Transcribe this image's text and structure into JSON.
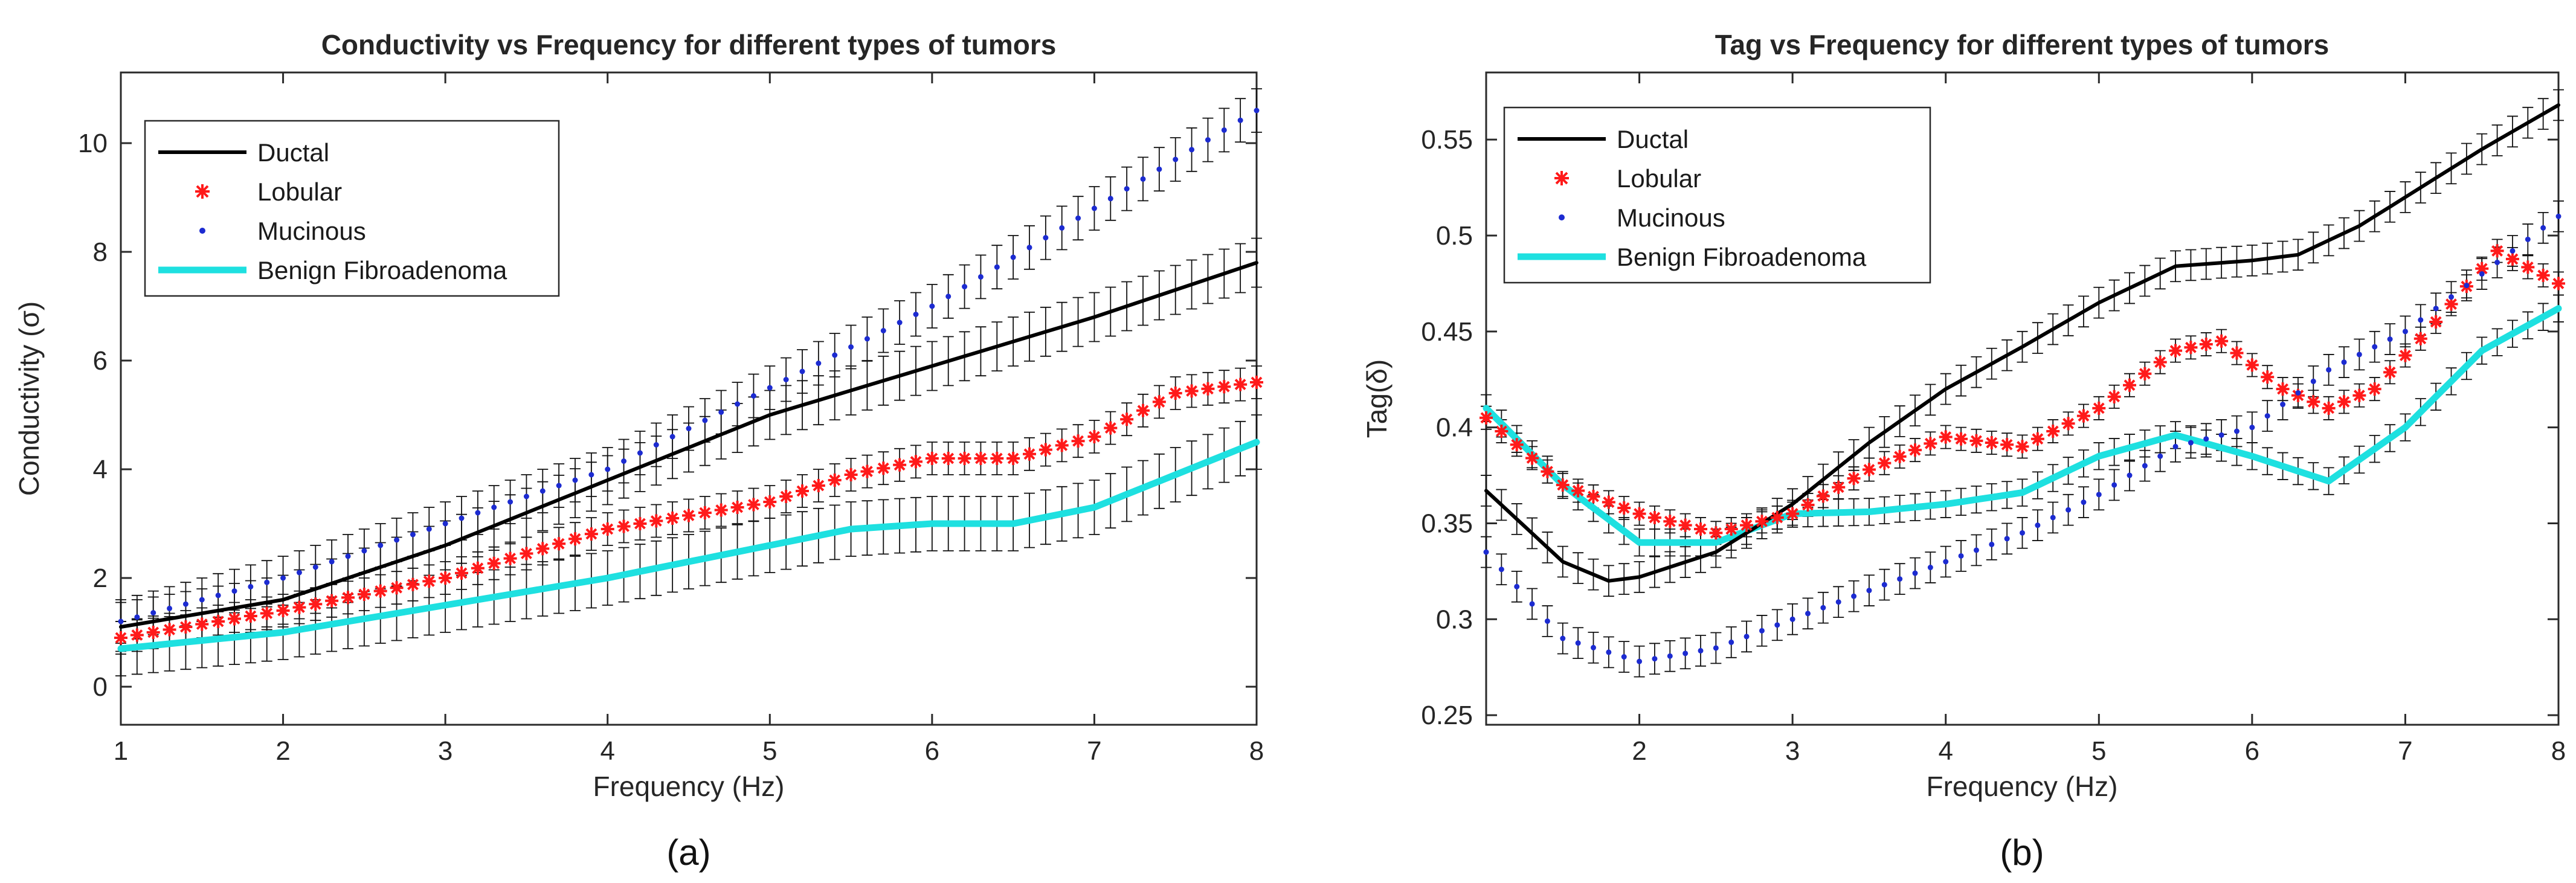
{
  "figure": {
    "panel_a_caption": "(a)",
    "panel_b_caption": "(b)"
  },
  "chart_data": [
    {
      "type": "line",
      "title": "Conductivity vs Frequency for different types of tumors",
      "xlabel": "Frequency (Hz)",
      "ylabel": "Conductivity (σ)",
      "xlim": [
        1,
        8
      ],
      "ylim": [
        -0.7,
        11.3
      ],
      "xticks": [
        1,
        2,
        3,
        4,
        5,
        6,
        7,
        8
      ],
      "yticks": [
        0,
        2,
        4,
        6,
        8,
        10
      ],
      "grid": false,
      "legend": "top-left",
      "series": [
        {
          "name": "Ductal",
          "style": "line",
          "color": "#000000",
          "error": 0.45,
          "x": [
            1,
            2,
            3,
            4,
            5,
            6,
            7,
            8
          ],
          "values": [
            1.1,
            1.6,
            2.6,
            3.8,
            5.0,
            5.9,
            6.8,
            7.8
          ]
        },
        {
          "name": "Lobular",
          "style": "asterisk",
          "color": "#ff1a1a",
          "error": 0.3,
          "x": [
            1,
            2,
            3,
            4,
            5,
            5.5,
            6,
            6.5,
            7,
            7.5,
            8
          ],
          "values": [
            0.9,
            1.4,
            2.0,
            2.9,
            3.4,
            3.9,
            4.2,
            4.2,
            4.6,
            5.4,
            5.6
          ]
        },
        {
          "name": "Mucinous",
          "style": "dot",
          "color": "#1c2bd1",
          "error": 0.4,
          "x": [
            1,
            2,
            3,
            4,
            5,
            6,
            7,
            8
          ],
          "values": [
            1.2,
            2.0,
            3.0,
            4.0,
            5.5,
            7.0,
            8.8,
            10.6
          ]
        },
        {
          "name": "Benign Fibroadenoma",
          "style": "thick",
          "color": "#1ee0e0",
          "error": 0.5,
          "x": [
            1,
            2,
            3,
            4,
            5,
            5.5,
            6,
            6.5,
            7,
            8
          ],
          "values": [
            0.7,
            1.0,
            1.5,
            2.0,
            2.6,
            2.9,
            3.0,
            3.0,
            3.3,
            4.5
          ]
        }
      ]
    },
    {
      "type": "line",
      "title": "Tag vs Frequency for different types of tumors",
      "xlabel": "Frequency (Hz)",
      "ylabel": "Tag(δ)",
      "xlim": [
        1,
        8
      ],
      "ylim": [
        0.245,
        0.585
      ],
      "xticks": [
        2,
        3,
        4,
        5,
        6,
        7,
        8
      ],
      "yticks": [
        0.25,
        0.3,
        0.35,
        0.4,
        0.45,
        0.5,
        0.55
      ],
      "grid": false,
      "legend": "top-left",
      "series": [
        {
          "name": "Ductal",
          "style": "line",
          "color": "#000000",
          "error": 0.008,
          "x": [
            1,
            1.5,
            1.8,
            2,
            2.5,
            3,
            3.5,
            4,
            4.5,
            5,
            5.5,
            6,
            6.3,
            6.7,
            7,
            7.5,
            8
          ],
          "values": [
            0.367,
            0.33,
            0.32,
            0.322,
            0.335,
            0.36,
            0.392,
            0.42,
            0.442,
            0.465,
            0.484,
            0.487,
            0.49,
            0.505,
            0.52,
            0.545,
            0.568
          ]
        },
        {
          "name": "Lobular",
          "style": "asterisk",
          "color": "#ff1a1a",
          "error": 0.006,
          "x": [
            1,
            1.5,
            2,
            2.5,
            3,
            3.5,
            4,
            4.5,
            5,
            5.5,
            5.8,
            6.2,
            6.5,
            6.8,
            7.2,
            7.6,
            8
          ],
          "values": [
            0.405,
            0.37,
            0.355,
            0.345,
            0.355,
            0.378,
            0.395,
            0.39,
            0.41,
            0.44,
            0.445,
            0.42,
            0.41,
            0.42,
            0.455,
            0.492,
            0.475
          ]
        },
        {
          "name": "Mucinous",
          "style": "dot",
          "color": "#1c2bd1",
          "error": 0.008,
          "x": [
            1,
            1.5,
            2,
            2.5,
            3,
            3.5,
            4,
            4.5,
            5,
            5.5,
            6,
            6.5,
            7,
            7.5,
            8
          ],
          "values": [
            0.335,
            0.29,
            0.278,
            0.285,
            0.3,
            0.315,
            0.33,
            0.345,
            0.365,
            0.39,
            0.4,
            0.43,
            0.45,
            0.48,
            0.51
          ]
        },
        {
          "name": "Benign Fibroadenoma",
          "style": "thick",
          "color": "#1ee0e0",
          "error": 0.007,
          "x": [
            1,
            1.5,
            2,
            2.5,
            3,
            3.5,
            4,
            4.5,
            5,
            5.5,
            6,
            6.5,
            7,
            7.5,
            8
          ],
          "values": [
            0.41,
            0.37,
            0.34,
            0.34,
            0.355,
            0.356,
            0.36,
            0.366,
            0.385,
            0.396,
            0.385,
            0.372,
            0.4,
            0.44,
            0.462
          ]
        }
      ]
    }
  ]
}
